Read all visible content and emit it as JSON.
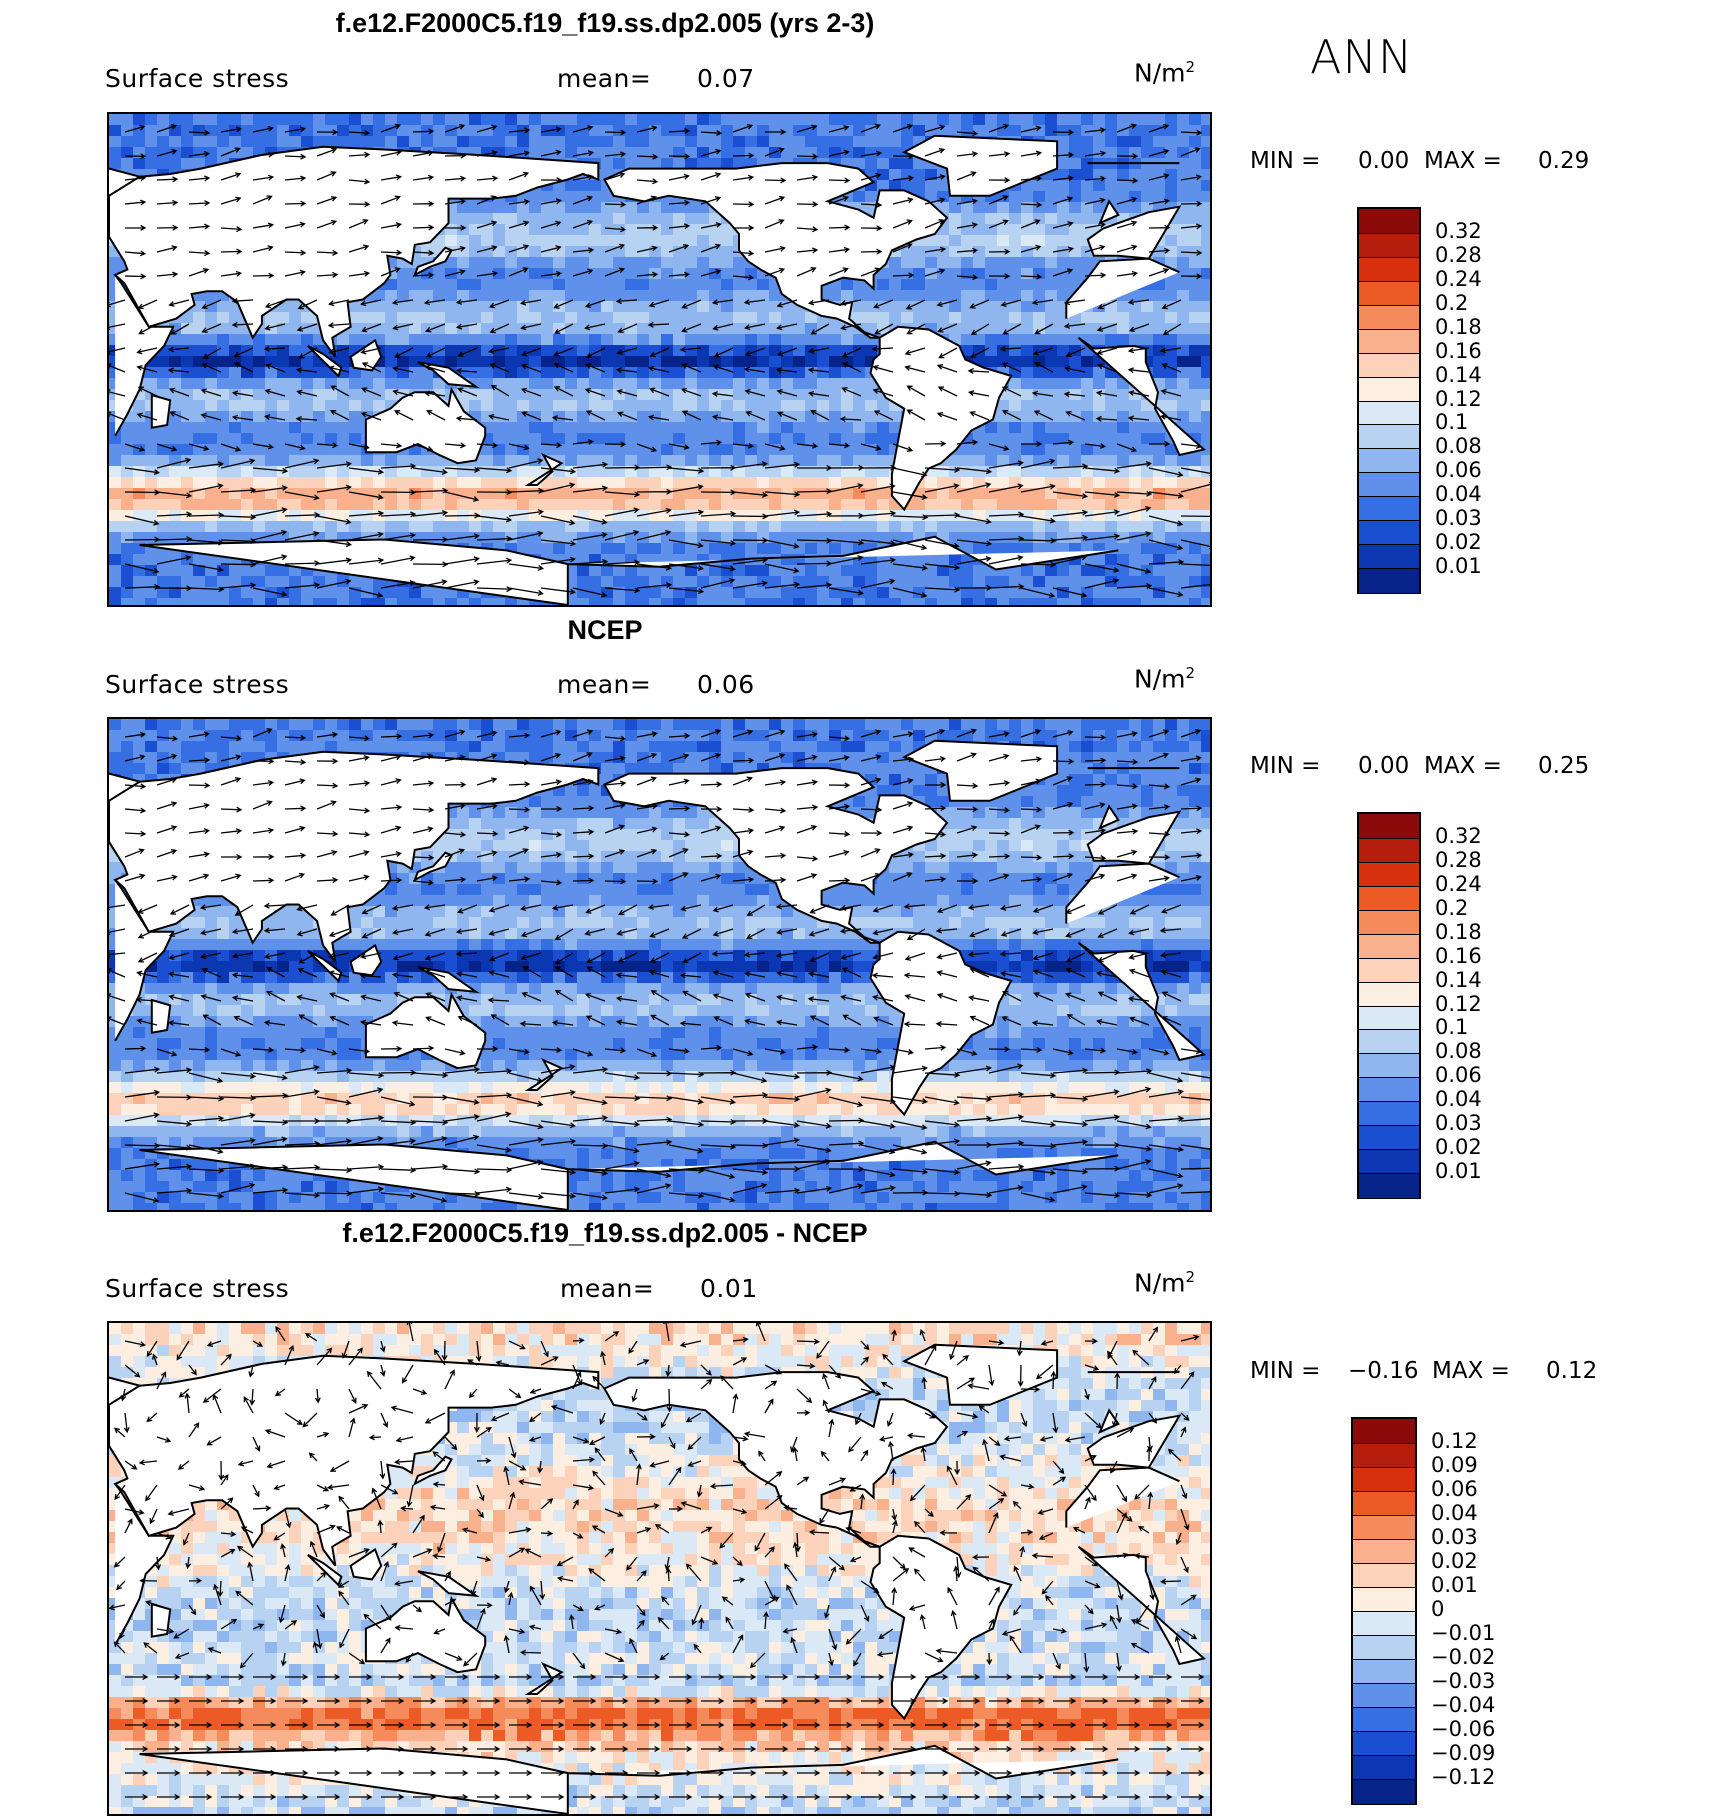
{
  "season": "ANN",
  "panels": [
    {
      "title": "f.e12.F2000C5.f19_f19.ss.dp2.005 (yrs 2-3)",
      "variable": "Surface stress",
      "mean_label": "mean=",
      "mean_value": "0.07",
      "units": "N/m",
      "units_exp": "2",
      "min_label": "MIN =",
      "min_value": "0.00",
      "max_label": "MAX =",
      "max_value": "0.29",
      "colorbar": {
        "labels": [
          "0.32",
          "0.28",
          "0.24",
          "0.2",
          "0.18",
          "0.16",
          "0.14",
          "0.12",
          "0.1",
          "0.08",
          "0.06",
          "0.04",
          "0.03",
          "0.02",
          "0.01"
        ],
        "colors": [
          "#8b0a0a",
          "#b51d0d",
          "#d7300f",
          "#ec5a25",
          "#f58a5a",
          "#f9b08d",
          "#fcd2bb",
          "#fdeee2",
          "#dbe9f7",
          "#b8d2f2",
          "#8fb6ee",
          "#5f91ea",
          "#366ee3",
          "#1a4fd2",
          "#0b37b3",
          "#06238a"
        ]
      },
      "chart_data": {
        "type": "heatmap",
        "field": "surface stress magnitude with wind stress vectors",
        "mean": 0.07,
        "min": 0.0,
        "max": 0.29,
        "levels": [
          0.01,
          0.02,
          0.03,
          0.04,
          0.06,
          0.08,
          0.1,
          0.12,
          0.14,
          0.16,
          0.18,
          0.2,
          0.24,
          0.28,
          0.32
        ]
      }
    },
    {
      "title": "NCEP",
      "variable": "Surface stress",
      "mean_label": "mean=",
      "mean_value": "0.06",
      "units": "N/m",
      "units_exp": "2",
      "min_label": "MIN =",
      "min_value": "0.00",
      "max_label": "MAX =",
      "max_value": "0.25",
      "colorbar": {
        "labels": [
          "0.32",
          "0.28",
          "0.24",
          "0.2",
          "0.18",
          "0.16",
          "0.14",
          "0.12",
          "0.1",
          "0.08",
          "0.06",
          "0.04",
          "0.03",
          "0.02",
          "0.01"
        ],
        "colors": [
          "#8b0a0a",
          "#b51d0d",
          "#d7300f",
          "#ec5a25",
          "#f58a5a",
          "#f9b08d",
          "#fcd2bb",
          "#fdeee2",
          "#dbe9f7",
          "#b8d2f2",
          "#8fb6ee",
          "#5f91ea",
          "#366ee3",
          "#1a4fd2",
          "#0b37b3",
          "#06238a"
        ]
      },
      "chart_data": {
        "type": "heatmap",
        "field": "surface stress magnitude with wind stress vectors",
        "mean": 0.06,
        "min": 0.0,
        "max": 0.25,
        "levels": [
          0.01,
          0.02,
          0.03,
          0.04,
          0.06,
          0.08,
          0.1,
          0.12,
          0.14,
          0.16,
          0.18,
          0.2,
          0.24,
          0.28,
          0.32
        ]
      }
    },
    {
      "title": "f.e12.F2000C5.f19_f19.ss.dp2.005 - NCEP",
      "variable": "Surface stress",
      "mean_label": "mean=",
      "mean_value": "0.01",
      "units": "N/m",
      "units_exp": "2",
      "min_label": "MIN =",
      "min_value": "−0.16",
      "max_label": "MAX =",
      "max_value": "0.12",
      "colorbar": {
        "labels": [
          "0.12",
          "0.09",
          "0.06",
          "0.04",
          "0.03",
          "0.02",
          "0.01",
          "0",
          "−0.01",
          "−0.02",
          "−0.03",
          "−0.04",
          "−0.06",
          "−0.09",
          "−0.12"
        ],
        "colors": [
          "#8b0a0a",
          "#b51d0d",
          "#d7300f",
          "#ec5a25",
          "#f58a5a",
          "#f9b08d",
          "#fcd2bb",
          "#fdeee2",
          "#dbe9f7",
          "#b8d2f2",
          "#8fb6ee",
          "#5f91ea",
          "#366ee3",
          "#1a4fd2",
          "#0b37b3",
          "#06238a"
        ]
      },
      "chart_data": {
        "type": "heatmap",
        "field": "surface stress difference with vector differences",
        "mean": 0.01,
        "min": -0.16,
        "max": 0.12,
        "levels": [
          -0.12,
          -0.09,
          -0.06,
          -0.04,
          -0.03,
          -0.02,
          -0.01,
          0,
          0.01,
          0.02,
          0.03,
          0.04,
          0.06,
          0.09,
          0.12
        ]
      }
    }
  ]
}
